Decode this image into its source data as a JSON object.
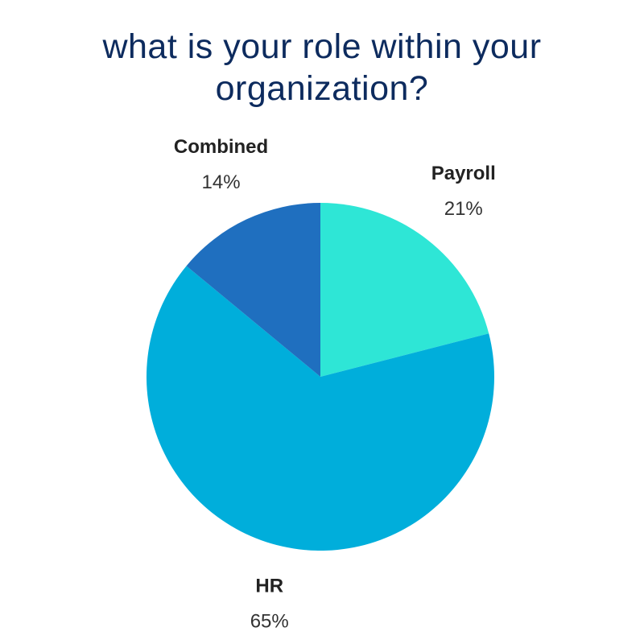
{
  "chart_data": {
    "type": "pie",
    "title": "what is your role within your organization?",
    "categories": [
      "Payroll",
      "HR",
      "Combined"
    ],
    "values": [
      21,
      65,
      14
    ],
    "value_labels": [
      "21%",
      "65%",
      "14%"
    ],
    "colors": [
      "#2ee6d6",
      "#00aedb",
      "#1f6fbf"
    ]
  }
}
